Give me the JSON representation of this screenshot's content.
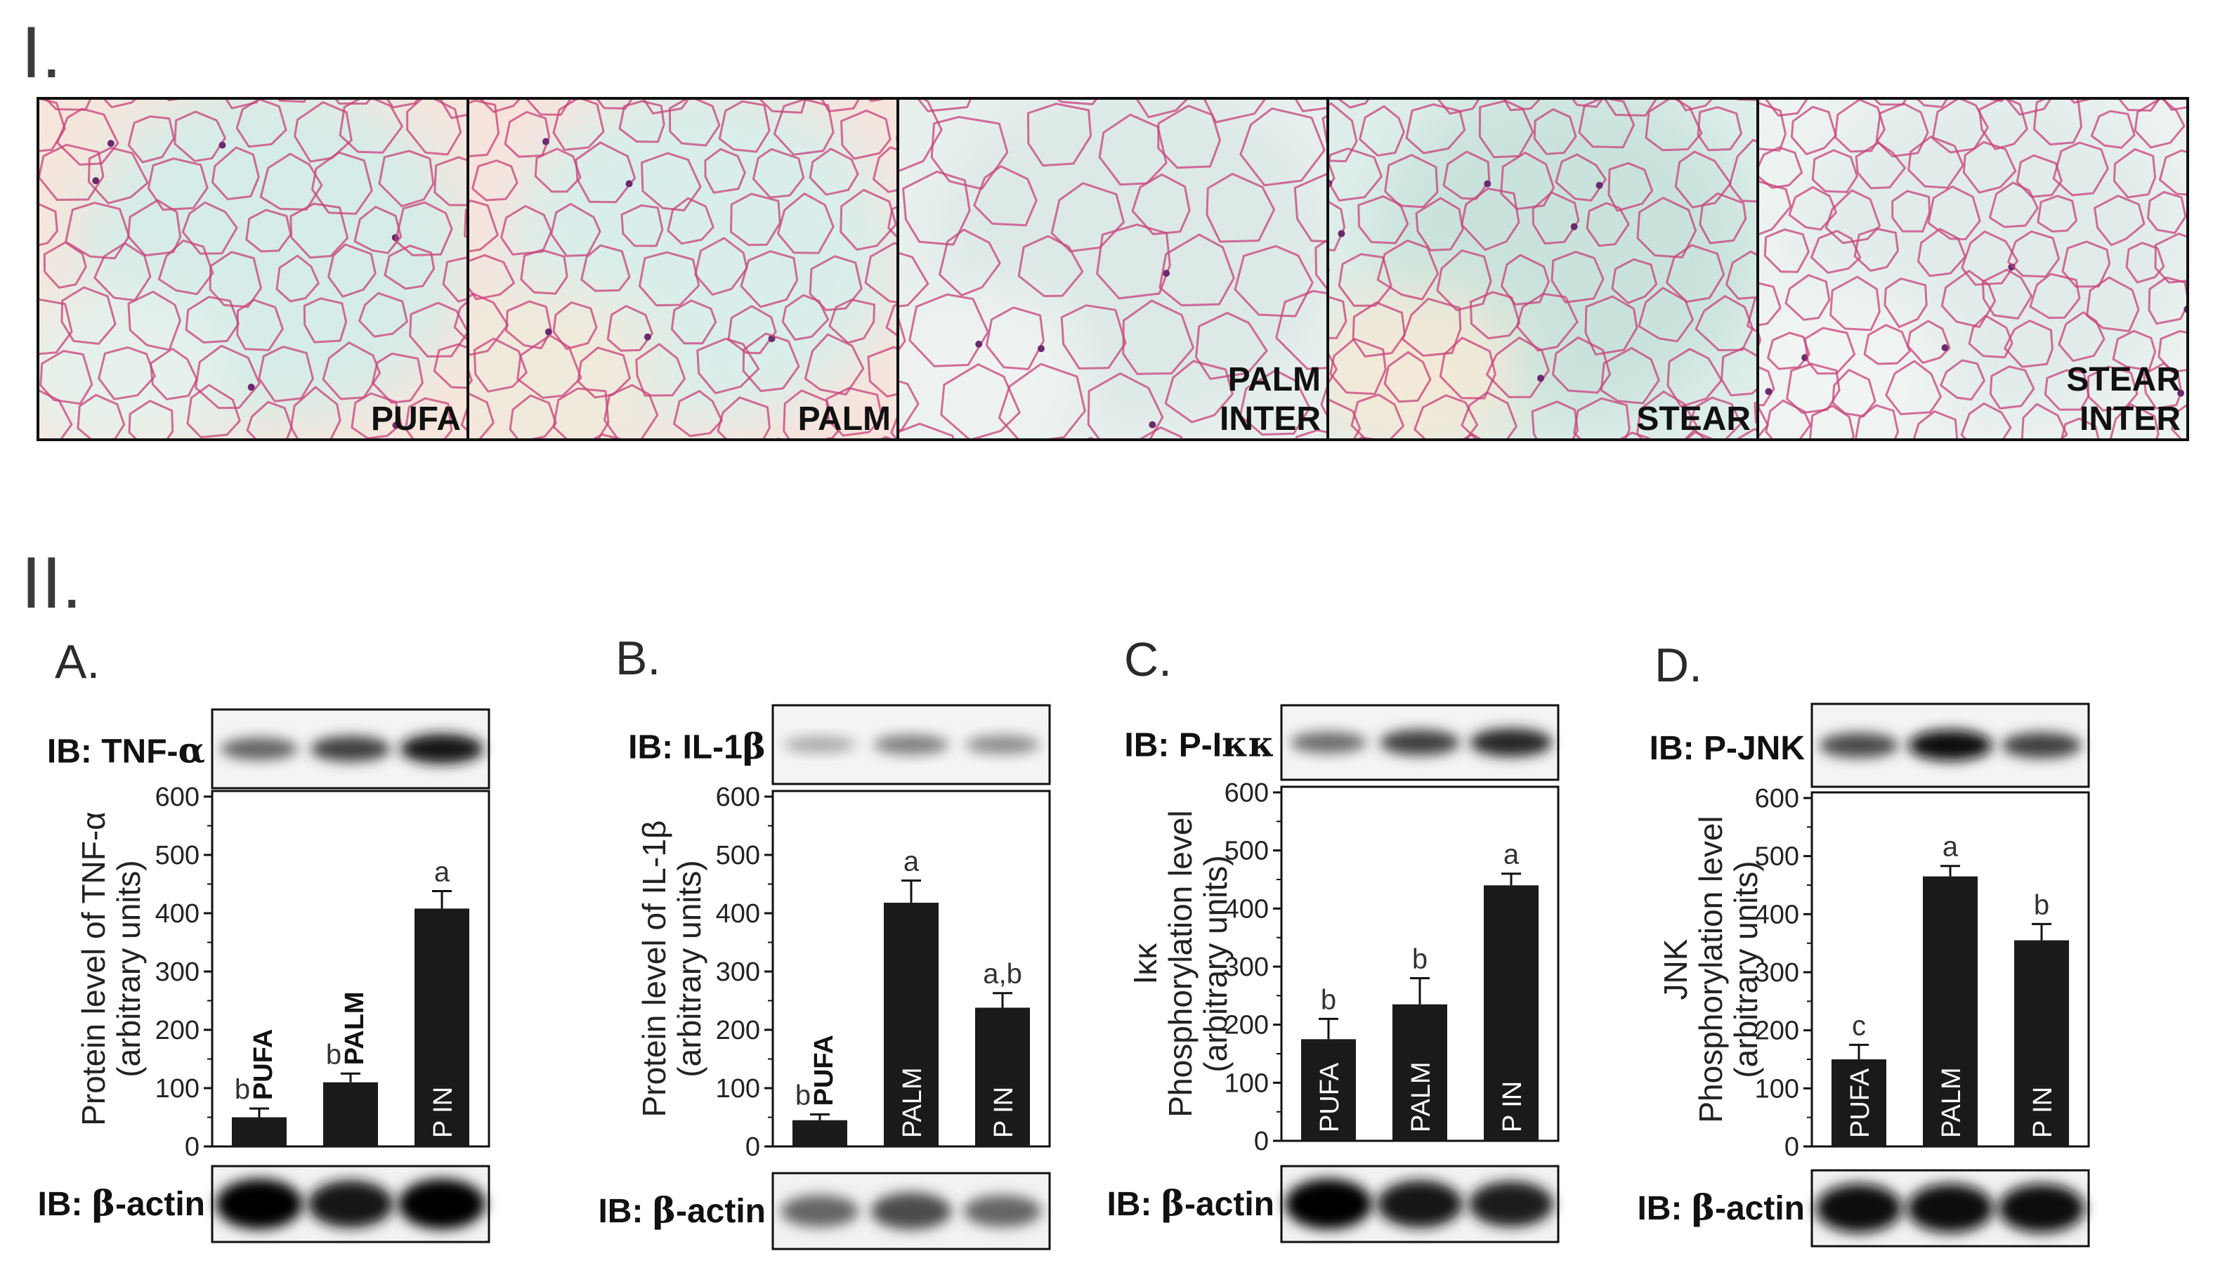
{
  "section_I": {
    "label": "I."
  },
  "section_II": {
    "label": "II."
  },
  "histology": [
    {
      "lines": [
        "PUFA"
      ]
    },
    {
      "lines": [
        "PALM"
      ]
    },
    {
      "lines": [
        "PALM",
        "INTER"
      ]
    },
    {
      "lines": [
        "STEAR"
      ]
    },
    {
      "lines": [
        "STEAR",
        "INTER"
      ]
    }
  ],
  "colors": {
    "bar": "#1a1a1a",
    "cell_membrane": "#c8407a",
    "tissue_bg": "#e4f0ee"
  },
  "chart_data": [
    {
      "panel": "A.",
      "type": "bar",
      "ib_top_prefix": "IB: TNF-",
      "ib_top_symbol": "α",
      "ib_bottom_prefix": "IB: ",
      "ib_bottom_symbol": "β",
      "ib_bottom_suffix": "-actin",
      "ylabel_lines": [
        "Protein level of TNF-α",
        "(arbitrary units)"
      ],
      "ylim": [
        0,
        600
      ],
      "yticks": [
        "0",
        "100",
        "200",
        "300",
        "400",
        "500",
        "600"
      ],
      "categories": [
        "PUFA",
        "PALM",
        "P IN"
      ],
      "label_style": [
        "above",
        "above",
        "inside"
      ],
      "values": [
        50,
        110,
        408
      ],
      "errors": [
        15,
        15,
        30
      ],
      "significance": [
        "b",
        "b",
        "a"
      ],
      "blot_top": [
        0.5,
        0.7,
        0.95
      ],
      "blot_bottom": [
        1.0,
        0.9,
        1.0
      ]
    },
    {
      "panel": "B.",
      "type": "bar",
      "ib_top_prefix": "IB: IL-1",
      "ib_top_symbol": "β",
      "ib_bottom_prefix": "IB: ",
      "ib_bottom_symbol": "β",
      "ib_bottom_suffix": "-actin",
      "ylabel_lines": [
        "Protein level of IL-1β",
        "(arbitrary units)"
      ],
      "ylim": [
        0,
        600
      ],
      "yticks": [
        "0",
        "100",
        "200",
        "300",
        "400",
        "500",
        "600"
      ],
      "categories": [
        "PUFA",
        "PALM",
        "P IN"
      ],
      "label_style": [
        "above",
        "inside",
        "inside"
      ],
      "values": [
        45,
        418,
        238
      ],
      "errors": [
        10,
        38,
        25
      ],
      "significance": [
        "b",
        "a",
        "a,b"
      ],
      "blot_top": [
        0.12,
        0.35,
        0.28
      ],
      "blot_bottom": [
        0.45,
        0.6,
        0.45
      ]
    },
    {
      "panel": "C.",
      "type": "bar",
      "ib_top_prefix": "IB: P-I",
      "ib_top_symbol": "κκ",
      "ib_bottom_prefix": "IB: ",
      "ib_bottom_symbol": "β",
      "ib_bottom_suffix": "-actin",
      "ylabel_lines": [
        "Iκκ",
        "Phosphorylation level",
        "(arbitrary units)"
      ],
      "ylim": [
        0,
        600
      ],
      "yticks": [
        "0",
        "100",
        "200",
        "300",
        "400",
        "500",
        "600"
      ],
      "categories": [
        "PUFA",
        "PALM",
        "P IN"
      ],
      "label_style": [
        "inside",
        "inside",
        "inside"
      ],
      "values": [
        175,
        235,
        440
      ],
      "errors": [
        35,
        45,
        20
      ],
      "significance": [
        "b",
        "b",
        "a"
      ],
      "blot_top": [
        0.45,
        0.7,
        0.85
      ],
      "blot_bottom": [
        1.0,
        0.9,
        0.85
      ]
    },
    {
      "panel": "D.",
      "type": "bar",
      "ib_top_prefix": "IB: P-JNK",
      "ib_top_symbol": "",
      "ib_bottom_prefix": "IB: ",
      "ib_bottom_symbol": "β",
      "ib_bottom_suffix": "-actin",
      "ylabel_lines": [
        "JNK",
        "Phosphorylation level",
        "(arbitrary units)"
      ],
      "ylim": [
        0,
        600
      ],
      "yticks": [
        "0",
        "100",
        "200",
        "300",
        "400",
        "500",
        "600"
      ],
      "categories": [
        "PUFA",
        "PALM",
        "P IN"
      ],
      "label_style": [
        "inside",
        "inside",
        "inside"
      ],
      "values": [
        150,
        465,
        355
      ],
      "errors": [
        25,
        18,
        28
      ],
      "significance": [
        "c",
        "a",
        "b"
      ],
      "blot_top": [
        0.65,
        1.0,
        0.7
      ],
      "blot_bottom": [
        0.95,
        0.95,
        0.95
      ]
    }
  ]
}
